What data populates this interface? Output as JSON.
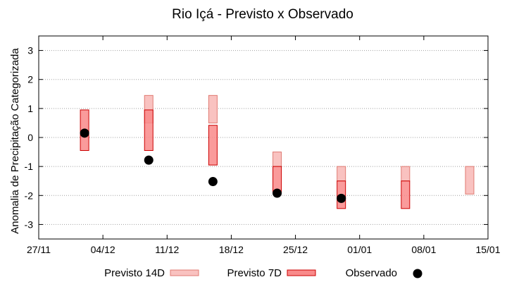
{
  "chart_data": {
    "type": "box",
    "title": "Rio Içá - Previsto x Observado",
    "xlabel": "",
    "ylabel": "Anomalia de Precipitação Categorizada",
    "ylim": [
      -3.5,
      3.5
    ],
    "yticks": [
      3,
      2,
      1,
      0,
      -1,
      -2,
      -3
    ],
    "xrange": [
      "2021-11-27",
      "2022-01-15"
    ],
    "xticks": [
      "27/11",
      "04/12",
      "11/12",
      "18/12",
      "25/12",
      "01/01",
      "08/01",
      "15/01"
    ],
    "grid": true,
    "legend_position": "bottom",
    "colors": {
      "previsto14d_fill": "#f9c2c0",
      "previsto14d_stroke": "#e07a72",
      "previsto7d_fill": "#f98a8a",
      "previsto7d_stroke": "#cc0000",
      "observado": "#000000",
      "grid": "#a0a0a0"
    },
    "series": [
      {
        "name": "Previsto 14D",
        "boxes": [
          {
            "x": "2021-12-09",
            "low": 0.5,
            "high": 1.45
          },
          {
            "x": "2021-12-16",
            "low": 0.5,
            "high": 1.45
          },
          {
            "x": "2021-12-23",
            "low": -1.0,
            "high": -0.5
          },
          {
            "x": "2021-12-30",
            "low": -1.5,
            "high": -1.0
          },
          {
            "x": "2022-01-06",
            "low": -1.5,
            "high": -1.0
          },
          {
            "x": "2022-01-13",
            "low": -1.95,
            "high": -1.0
          }
        ]
      },
      {
        "name": "Previsto 7D",
        "boxes": [
          {
            "x": "2021-12-02",
            "low": -0.45,
            "high": 0.95
          },
          {
            "x": "2021-12-09",
            "low": -0.45,
            "high": 0.95
          },
          {
            "x": "2021-12-16",
            "low": -0.95,
            "high": 0.42
          },
          {
            "x": "2021-12-23",
            "low": -1.9,
            "high": -1.0
          },
          {
            "x": "2021-12-30",
            "low": -2.45,
            "high": -1.5
          },
          {
            "x": "2022-01-06",
            "low": -2.45,
            "high": -1.5
          }
        ]
      },
      {
        "name": "Observado",
        "points": [
          {
            "x": "2021-12-02",
            "y": 0.15
          },
          {
            "x": "2021-12-09",
            "y": -0.78
          },
          {
            "x": "2021-12-16",
            "y": -1.52
          },
          {
            "x": "2021-12-23",
            "y": -1.92
          },
          {
            "x": "2021-12-30",
            "y": -2.1
          }
        ]
      }
    ]
  }
}
